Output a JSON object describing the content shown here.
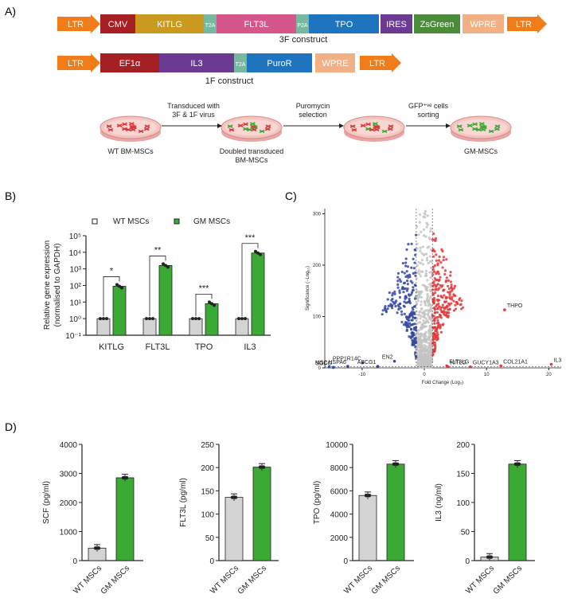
{
  "panels": {
    "a": "A)",
    "b": "B)",
    "c": "C)",
    "d": "D)"
  },
  "colors": {
    "ltr": "#f07d1a",
    "cmv": "#a61f22",
    "kitlg": "#c99a1f",
    "t2a": "#78b8a0",
    "flt3l": "#d6558a",
    "tpo": "#1f74bf",
    "ires": "#6b3b93",
    "zsgreen": "#4a8c3a",
    "wpre": "#f2b184",
    "il3": "#6b3b93",
    "wt_bar": "#d4d4d4",
    "gm_bar": "#3aaa35",
    "up": "#e03838",
    "down": "#3347a6",
    "ns": "#c4c4c4"
  },
  "construct3f": {
    "segments": [
      "LTR",
      "CMV",
      "KITLG",
      "T2A",
      "FLT3L",
      "P2A",
      "TPO",
      "IRES",
      "ZsGreen",
      "WPRE",
      "LTR"
    ],
    "caption": "3F construct"
  },
  "construct1f": {
    "segments": [
      "LTR",
      "EF1α",
      "IL3",
      "T2A",
      "PuroR",
      "WPRE",
      "LTR"
    ],
    "caption": "1F construct"
  },
  "workflow": {
    "dish_labels": [
      "WT BM-MSCs",
      "Doubled transduced BM-MSCs",
      "GM-MSCs"
    ],
    "dish_label_lines": [
      [
        "WT BM-MSCs"
      ],
      [
        "Doubled transduced",
        "BM-MSCs"
      ],
      [],
      [
        "GM-MSCs"
      ]
    ],
    "steps": [
      [
        "Transduced with",
        "3F & 1F virus"
      ],
      [
        "Puromycin",
        "selection"
      ],
      [
        "GFP⁺ᵛᵉ cells",
        "sorting"
      ]
    ]
  },
  "chart_data": [
    {
      "type": "bar",
      "panel": "B",
      "categories": [
        "KITLG",
        "FLT3L",
        "TPO",
        "IL3"
      ],
      "series": [
        {
          "name": "WT MSCs",
          "values": [
            1,
            1,
            1,
            1
          ]
        },
        {
          "name": "GM MSCs",
          "values": [
            90,
            1600,
            8,
            9000
          ]
        }
      ],
      "significance": [
        "*",
        "**",
        "***",
        "***"
      ],
      "ylabel": [
        "Relative gene expression",
        "(normalised to GAPDH)"
      ],
      "yscale": "log",
      "ylim": [
        0.1,
        100000
      ],
      "yticks": [
        "10⁻¹",
        "10⁰",
        "10¹",
        "10²",
        "10³",
        "10⁴",
        "10⁵"
      ],
      "legend_position": "top"
    },
    {
      "type": "scatter",
      "panel": "C",
      "xlabel": "Fold Change (Log₂)",
      "ylabel": "Significance (−Log₁₀)",
      "xlim": [
        -16,
        22
      ],
      "ylim": [
        0,
        310
      ],
      "xticks": [
        -10,
        0,
        10,
        20
      ],
      "yticks": [
        0,
        100,
        200,
        300
      ],
      "labeled_genes": [
        {
          "gene": "THPO",
          "x": 12.9,
          "y": 113
        },
        {
          "gene": "IL3",
          "x": 20.4,
          "y": 7
        },
        {
          "gene": "COL21A1",
          "x": 12.3,
          "y": 4
        },
        {
          "gene": "FLT3LG",
          "x": 3.6,
          "y": 4
        },
        {
          "gene": "KITLG",
          "x": 3.8,
          "y": 2
        },
        {
          "gene": "GUCY1A3",
          "x": 7.4,
          "y": 2
        },
        {
          "gene": "MSC",
          "x": -15.3,
          "y": 2
        },
        {
          "gene": "SGCG",
          "x": -14.6,
          "y": 1
        },
        {
          "gene": "HSPA6",
          "x": -12.3,
          "y": 3
        },
        {
          "gene": "PPP1R14C",
          "x": -9.9,
          "y": 10
        },
        {
          "gene": "ABCG1",
          "x": -7.5,
          "y": 3
        },
        {
          "gene": "EN2",
          "x": -4.8,
          "y": 13
        }
      ]
    },
    {
      "type": "bar",
      "panel": "D",
      "categories": [
        "WT MSCs",
        "GM MSCs"
      ],
      "values": [
        430,
        2850
      ],
      "ylabel": "SCF (pg/ml)",
      "ylim": [
        0,
        4000
      ],
      "yticks": [
        0,
        1000,
        2000,
        3000,
        4000
      ]
    },
    {
      "type": "bar",
      "panel": "D",
      "categories": [
        "WT MSCs",
        "GM MSCs"
      ],
      "values": [
        136,
        201
      ],
      "ylabel": "FLT3L (pg/ml)",
      "ylim": [
        0,
        250
      ],
      "yticks": [
        0,
        50,
        100,
        150,
        200,
        250
      ]
    },
    {
      "type": "bar",
      "panel": "D",
      "categories": [
        "WT MSCs",
        "GM MSCs"
      ],
      "values": [
        5600,
        8300
      ],
      "ylabel": "TPO (pg/ml)",
      "ylim": [
        0,
        10000
      ],
      "yticks": [
        0,
        2000,
        4000,
        6000,
        8000,
        10000
      ]
    },
    {
      "type": "bar",
      "panel": "D",
      "categories": [
        "WT MSCs",
        "GM MSCs"
      ],
      "values": [
        6,
        166
      ],
      "ylabel": "IL3 (ng/ml)",
      "ylim": [
        0,
        200
      ],
      "yticks": [
        0,
        50,
        100,
        150,
        200
      ]
    }
  ]
}
